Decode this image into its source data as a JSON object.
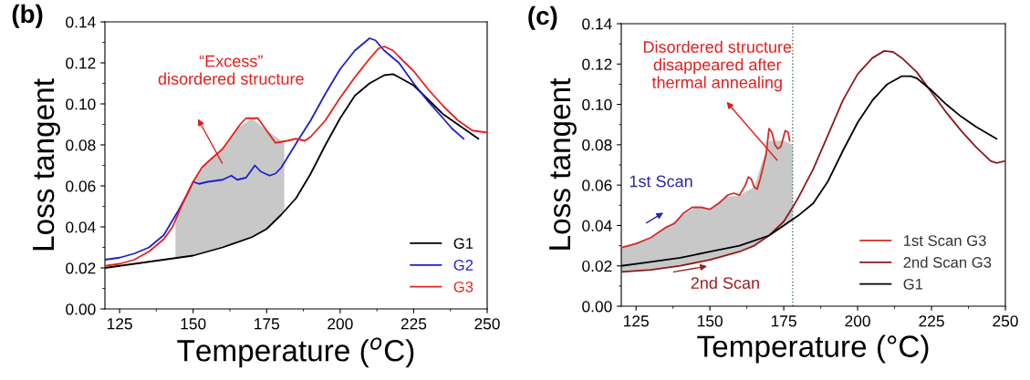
{
  "chart_data": [
    {
      "type": "line",
      "title": "(b)",
      "xlabel": "Temperature ($^{o}$C)",
      "ylabel": "Loss tangent",
      "xlim": [
        120,
        250
      ],
      "xticks": [
        125,
        150,
        175,
        200,
        225,
        250
      ],
      "ylim": [
        0,
        0.14
      ],
      "yticks": [
        {
          "value": 0,
          "label": "0.00"
        },
        {
          "value": 0.02,
          "label": "0.02"
        },
        {
          "value": 0.04,
          "label": "0.04"
        },
        {
          "value": 0.06,
          "label": "0.06"
        },
        {
          "value": 0.08,
          "label": "0.08"
        },
        {
          "value": 0.1,
          "label": "0.10"
        },
        {
          "value": 0.12,
          "label": "0.12"
        },
        {
          "value": 0.14,
          "label": "0.14"
        }
      ],
      "legend": "bottom right",
      "grid": false,
      "marker": "none",
      "line_style": "solid",
      "series": [
        {
          "type": "area",
          "color": "#c8c8c8",
          "x": [
            144,
            150,
            155,
            160,
            165,
            170,
            175,
            181
          ],
          "values": [
            0.044,
            0.062,
            0.072,
            0.078,
            0.088,
            0.093,
            0.087,
            0.081
          ]
        },
        {
          "name": "G1",
          "color": "#000000",
          "x": [
            120,
            150,
            160,
            170,
            175,
            180,
            185,
            190,
            195,
            200,
            205,
            210,
            215,
            218,
            220,
            225,
            230,
            235,
            240,
            245,
            247
          ],
          "values": [
            0.02,
            0.026,
            0.03,
            0.035,
            0.039,
            0.046,
            0.054,
            0.066,
            0.08,
            0.093,
            0.104,
            0.11,
            0.114,
            0.1145,
            0.113,
            0.109,
            0.102,
            0.095,
            0.09,
            0.085,
            0.083
          ]
        },
        {
          "name": "G2",
          "color": "#1f1fcc",
          "x": [
            120,
            125,
            130,
            135,
            140,
            145,
            148,
            150,
            152,
            155,
            160,
            163,
            165,
            168,
            170,
            171,
            173,
            176,
            178,
            180,
            183,
            186,
            190,
            195,
            200,
            205,
            210,
            212,
            215,
            220,
            225,
            230,
            235,
            238,
            242
          ],
          "values": [
            0.024,
            0.025,
            0.027,
            0.03,
            0.036,
            0.048,
            0.056,
            0.062,
            0.061,
            0.062,
            0.063,
            0.065,
            0.063,
            0.064,
            0.068,
            0.07,
            0.067,
            0.065,
            0.066,
            0.069,
            0.076,
            0.083,
            0.092,
            0.105,
            0.117,
            0.126,
            0.132,
            0.131,
            0.126,
            0.12,
            0.11,
            0.101,
            0.093,
            0.088,
            0.083
          ]
        },
        {
          "name": "G3",
          "color": "#e8201c",
          "x": [
            120,
            125,
            130,
            135,
            140,
            143,
            146,
            150,
            153,
            156,
            160,
            163,
            166,
            168,
            170,
            172,
            175,
            178,
            182,
            185,
            188,
            190,
            195,
            200,
            205,
            210,
            213,
            215,
            218,
            220,
            225,
            230,
            235,
            240,
            245,
            250
          ],
          "values": [
            0.021,
            0.022,
            0.024,
            0.028,
            0.034,
            0.04,
            0.05,
            0.062,
            0.069,
            0.073,
            0.078,
            0.084,
            0.09,
            0.093,
            0.093,
            0.093,
            0.087,
            0.081,
            0.082,
            0.083,
            0.082,
            0.084,
            0.092,
            0.103,
            0.113,
            0.122,
            0.127,
            0.128,
            0.126,
            0.123,
            0.116,
            0.107,
            0.099,
            0.092,
            0.087,
            0.086
          ]
        }
      ],
      "annotations": [
        "“Excess”\ndisordered structure"
      ]
    },
    {
      "type": "line",
      "title": "(c)",
      "xlabel": "Temperature (°C)",
      "ylabel": "Loss tangent",
      "xlim": [
        120,
        250
      ],
      "xticks": [
        125,
        150,
        175,
        200,
        225,
        250
      ],
      "ylim": [
        0,
        0.14
      ],
      "yticks": [
        {
          "value": 0,
          "label": "0.00"
        },
        {
          "value": 0.02,
          "label": "0.02"
        },
        {
          "value": 0.04,
          "label": "0.04"
        },
        {
          "value": 0.06,
          "label": "0.06"
        },
        {
          "value": 0.08,
          "label": "0.08"
        },
        {
          "value": 0.1,
          "label": "0.10"
        },
        {
          "value": 0.12,
          "label": "0.12"
        },
        {
          "value": 0.14,
          "label": "0.14"
        }
      ],
      "legend": "bottom right",
      "grid": false,
      "marker": "none",
      "line_style": "solid",
      "ref_lines": [
        {
          "axis": "x",
          "value": 178,
          "color": "#4a7a4a",
          "line_style": "dotted"
        }
      ],
      "series": [
        {
          "type": "area",
          "color": "#c8c8c8",
          "x": [
            120,
            130,
            140,
            145,
            150,
            155,
            160,
            165,
            170,
            175,
            178
          ],
          "values": [
            0.029,
            0.034,
            0.044,
            0.049,
            0.048,
            0.054,
            0.055,
            0.059,
            0.082,
            0.082,
            0.08
          ]
        },
        {
          "name": "1st Scan G3",
          "color": "#d42c2c",
          "x": [
            120,
            125,
            130,
            135,
            138,
            141,
            144,
            147,
            150,
            153,
            156,
            158,
            160,
            162,
            163,
            164,
            165,
            166,
            167,
            169,
            170,
            171,
            172,
            173,
            174,
            175.5,
            176.5,
            177
          ],
          "values": [
            0.029,
            0.031,
            0.034,
            0.039,
            0.041,
            0.046,
            0.049,
            0.049,
            0.048,
            0.051,
            0.055,
            0.056,
            0.055,
            0.06,
            0.064,
            0.063,
            0.059,
            0.058,
            0.063,
            0.075,
            0.088,
            0.086,
            0.08,
            0.078,
            0.079,
            0.087,
            0.086,
            0.082
          ]
        },
        {
          "name": "2nd Scan G3",
          "color": "#8b1a1a",
          "x": [
            120,
            130,
            140,
            150,
            160,
            165,
            170,
            175,
            178,
            180,
            185,
            190,
            195,
            200,
            205,
            209,
            212,
            215,
            220,
            225,
            230,
            235,
            240,
            245,
            247,
            250
          ],
          "values": [
            0.017,
            0.018,
            0.02,
            0.023,
            0.027,
            0.03,
            0.035,
            0.042,
            0.049,
            0.054,
            0.068,
            0.085,
            0.102,
            0.115,
            0.123,
            0.1265,
            0.126,
            0.123,
            0.116,
            0.106,
            0.096,
            0.087,
            0.079,
            0.072,
            0.071,
            0.072
          ]
        },
        {
          "name": "G1",
          "color": "#000000",
          "x": [
            120,
            130,
            140,
            150,
            160,
            170,
            175,
            180,
            185,
            190,
            195,
            200,
            205,
            210,
            215,
            218,
            220,
            225,
            230,
            235,
            240,
            247
          ],
          "values": [
            0.02,
            0.022,
            0.024,
            0.027,
            0.03,
            0.035,
            0.04,
            0.045,
            0.051,
            0.062,
            0.077,
            0.091,
            0.102,
            0.11,
            0.114,
            0.114,
            0.113,
            0.107,
            0.1,
            0.094,
            0.089,
            0.083
          ]
        }
      ],
      "annotations": [
        "Disordered structure\ndisappeared after\nthermal annealing",
        "1st Scan",
        "2nd Scan"
      ]
    }
  ]
}
